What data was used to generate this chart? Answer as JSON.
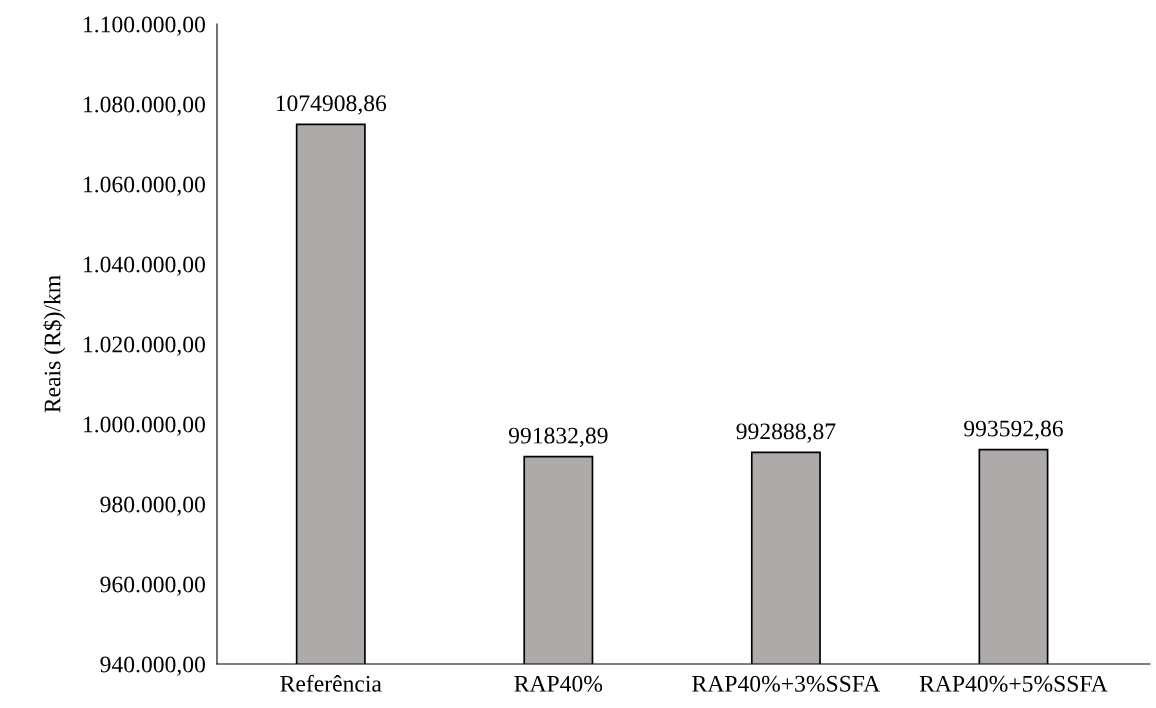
{
  "chart_data": {
    "type": "bar",
    "ylabel": "Reais (R$)/km",
    "categories": [
      "Referência",
      "RAP40%",
      "RAP40%+3%SSFA",
      "RAP40%+5%SSFA"
    ],
    "values": [
      1074908.86,
      991832.89,
      992888.87,
      993592.86
    ],
    "value_labels": [
      "1074908,86",
      "991832,89",
      "992888,87",
      "993592,86"
    ],
    "color": "#aeaaaa",
    "ylim": [
      940000,
      1100000
    ],
    "yticks": [
      {
        "value": 940000,
        "label": "940.000,00"
      },
      {
        "value": 960000,
        "label": "960.000,00"
      },
      {
        "value": 980000,
        "label": "980.000,00"
      },
      {
        "value": 1000000,
        "label": "1.000.000,00"
      },
      {
        "value": 1020000,
        "label": "1.020.000,00"
      },
      {
        "value": 1040000,
        "label": "1.040.000,00"
      },
      {
        "value": 1060000,
        "label": "1.060.000,00"
      },
      {
        "value": 1080000,
        "label": "1.080.000,00"
      },
      {
        "value": 1100000,
        "label": "1.100.000,00"
      }
    ],
    "grid": false,
    "legend": false
  }
}
